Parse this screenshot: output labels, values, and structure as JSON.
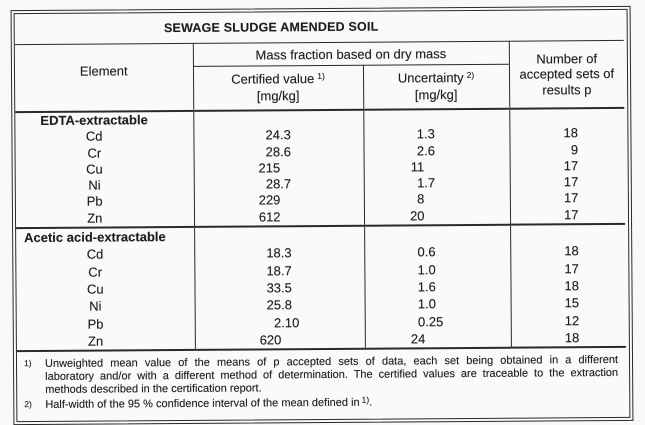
{
  "title": "SEWAGE SLUDGE AMENDED SOIL",
  "columns": {
    "element": "Element",
    "mass_fraction_group": "Mass fraction based on dry mass",
    "certified_value": {
      "label": "Certified value",
      "footnote_ref": "1)",
      "unit": "[mg/kg]"
    },
    "uncertainty": {
      "label": "Uncertainty",
      "footnote_ref": "2)",
      "unit": "[mg/kg]"
    },
    "accepted_sets": {
      "lines": [
        "Number of",
        "accepted sets of",
        "results p"
      ]
    }
  },
  "sections": [
    {
      "name": "EDTA-extractable",
      "rows": [
        {
          "element": "Cd",
          "certified_value": "24.3",
          "uncertainty": "1.3",
          "p": "18"
        },
        {
          "element": "Cr",
          "certified_value": "28.6",
          "uncertainty": "2.6",
          "p": "9"
        },
        {
          "element": "Cu",
          "certified_value": "215",
          "uncertainty": "11",
          "p": "17"
        },
        {
          "element": "Ni",
          "certified_value": "28.7",
          "uncertainty": "1.7",
          "p": "17"
        },
        {
          "element": "Pb",
          "certified_value": "229",
          "uncertainty": "8",
          "p": "17"
        },
        {
          "element": "Zn",
          "certified_value": "612",
          "uncertainty": "20",
          "p": "17"
        }
      ]
    },
    {
      "name": "Acetic acid-extractable",
      "rows": [
        {
          "element": "Cd",
          "certified_value": "18.3",
          "uncertainty": "0.6",
          "p": "18"
        },
        {
          "element": "Cr",
          "certified_value": "18.7",
          "uncertainty": "1.0",
          "p": "17"
        },
        {
          "element": "Cu",
          "certified_value": "33.5",
          "uncertainty": "1.6",
          "p": "18"
        },
        {
          "element": "Ni",
          "certified_value": "25.8",
          "uncertainty": "1.0",
          "p": "15"
        },
        {
          "element": "Pb",
          "certified_value": "2.10",
          "uncertainty": "0.25",
          "p": "12"
        },
        {
          "element": "Zn",
          "certified_value": "620",
          "uncertainty": "24",
          "p": "18"
        }
      ]
    }
  ],
  "footnotes": [
    {
      "marker": "1)",
      "lines": [
        "Unweighted mean value of the means of p accepted sets of data, each set being obtained in a different",
        "laboratory and/or with a different method of determination. The certified values are traceable to the extraction",
        "methods described in the certification report."
      ]
    },
    {
      "marker": "2)",
      "text": "Half-width of the 95 % confidence interval of the mean defined in",
      "ref": "1)",
      "tail": "."
    }
  ],
  "colors": {
    "background": "#f8f8f6",
    "ink": "#1e1e1e",
    "line": "#2a2a2a"
  }
}
